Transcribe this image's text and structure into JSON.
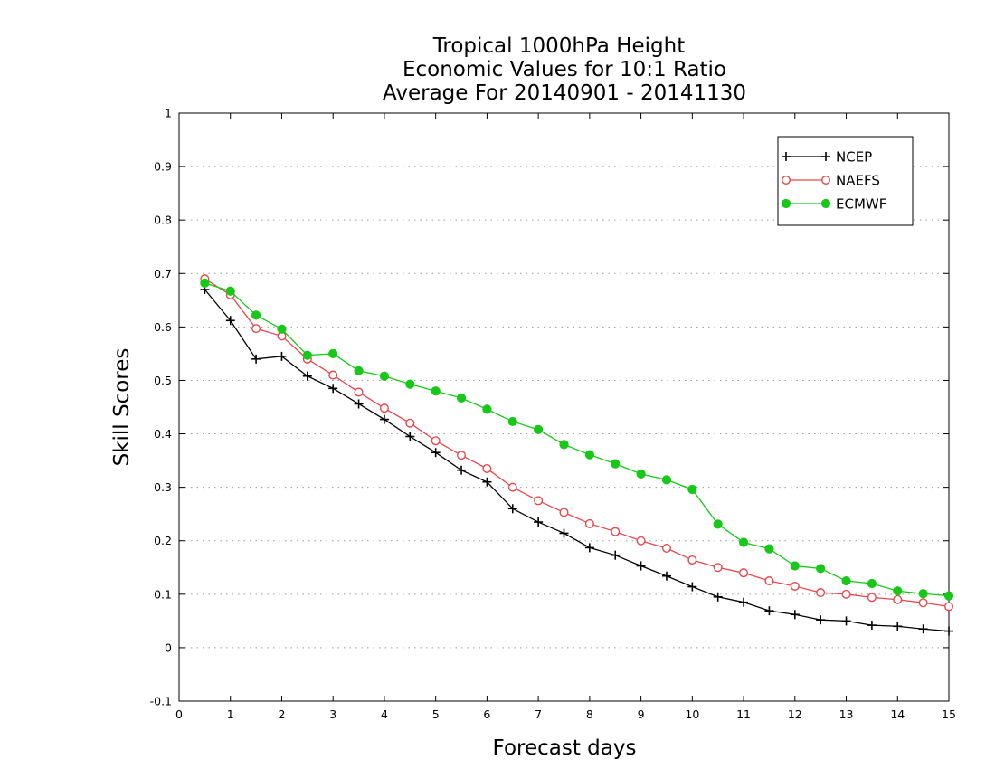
{
  "chart_data": {
    "type": "line",
    "title": [
      "Tropical 1000hPa Height",
      "Economic Values for 10:1 Ratio",
      "Average For 20140901 - 20141130"
    ],
    "xlabel": "Forecast days",
    "ylabel": "Skill Scores",
    "xlim": [
      0,
      15
    ],
    "ylim": [
      -0.1,
      1
    ],
    "xticks": [
      "0",
      "1",
      "2",
      "3",
      "4",
      "5",
      "6",
      "7",
      "8",
      "9",
      "10",
      "11",
      "12",
      "13",
      "14",
      "15"
    ],
    "yticks": [
      "-0.1",
      "0",
      "0.1",
      "0.2",
      "0.3",
      "0.4",
      "0.5",
      "0.6",
      "0.7",
      "0.8",
      "0.9",
      "1"
    ],
    "grid": true,
    "legend_position": "top-right",
    "x": [
      0.5,
      1,
      1.5,
      2,
      2.5,
      3,
      3.5,
      4,
      4.5,
      5,
      5.5,
      6,
      6.5,
      7,
      7.5,
      8,
      8.5,
      9,
      9.5,
      10,
      10.5,
      11,
      11.5,
      12,
      12.5,
      13,
      13.5,
      14,
      14.5,
      15
    ],
    "series": [
      {
        "name": "NCEP",
        "color": "#000000",
        "marker": "plus",
        "values": [
          0.67,
          0.612,
          0.54,
          0.545,
          0.508,
          0.485,
          0.456,
          0.427,
          0.395,
          0.365,
          0.332,
          0.31,
          0.26,
          0.235,
          0.214,
          0.187,
          0.173,
          0.153,
          0.134,
          0.114,
          0.095,
          0.085,
          0.069,
          0.062,
          0.052,
          0.05,
          0.042,
          0.04,
          0.035,
          0.031
        ]
      },
      {
        "name": "NAEFS",
        "color": "#e8474c",
        "marker": "open-circle",
        "values": [
          0.69,
          0.66,
          0.597,
          0.583,
          0.54,
          0.51,
          0.478,
          0.448,
          0.42,
          0.387,
          0.36,
          0.335,
          0.3,
          0.275,
          0.253,
          0.232,
          0.217,
          0.2,
          0.186,
          0.164,
          0.15,
          0.14,
          0.125,
          0.115,
          0.103,
          0.1,
          0.094,
          0.09,
          0.084,
          0.077
        ]
      },
      {
        "name": "ECMWF",
        "color": "#18c818",
        "marker": "filled-circle",
        "values": [
          0.682,
          0.667,
          0.622,
          0.596,
          0.547,
          0.55,
          0.518,
          0.508,
          0.493,
          0.48,
          0.467,
          0.446,
          0.423,
          0.408,
          0.38,
          0.361,
          0.344,
          0.325,
          0.314,
          0.296,
          0.231,
          0.197,
          0.185,
          0.153,
          0.148,
          0.125,
          0.12,
          0.106,
          0.101,
          0.097
        ]
      }
    ]
  }
}
